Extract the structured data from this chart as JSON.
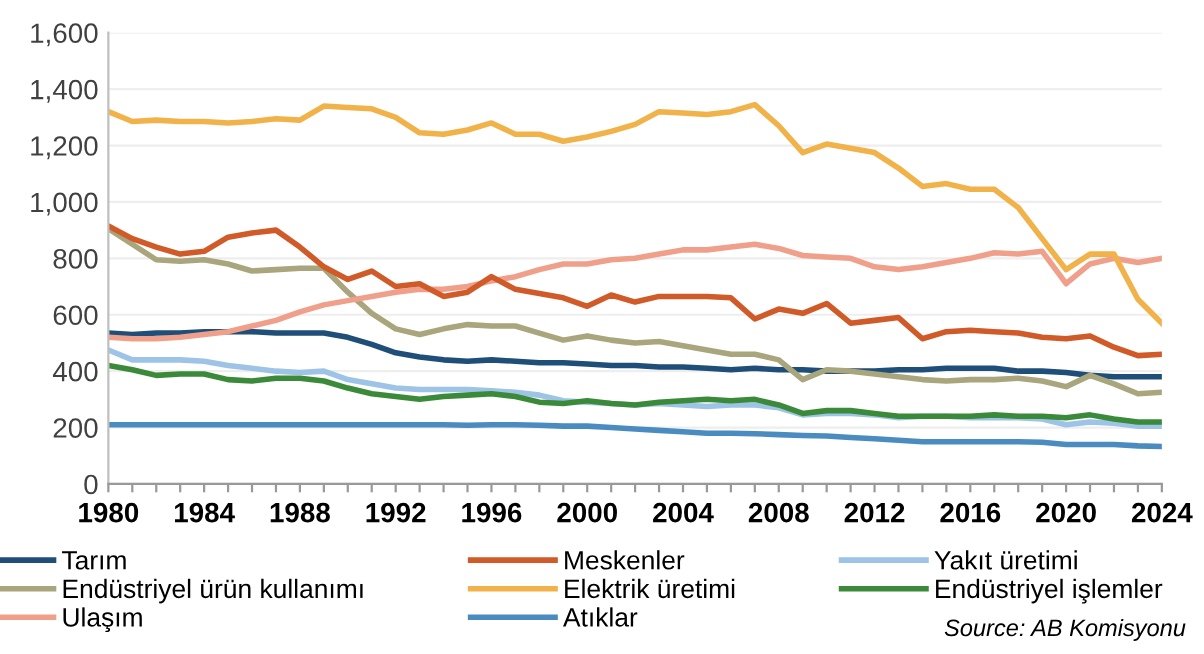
{
  "chart_data": {
    "type": "line",
    "x": [
      1980,
      1981,
      1982,
      1983,
      1984,
      1985,
      1986,
      1987,
      1988,
      1989,
      1990,
      1991,
      1992,
      1993,
      1994,
      1995,
      1996,
      1997,
      1998,
      1999,
      2000,
      2001,
      2002,
      2003,
      2004,
      2005,
      2006,
      2007,
      2008,
      2009,
      2010,
      2011,
      2012,
      2013,
      2014,
      2015,
      2016,
      2017,
      2018,
      2019,
      2020,
      2021,
      2022,
      2023,
      2024
    ],
    "series": [
      {
        "name": "Tarım",
        "color": "#1f4e79",
        "values": [
          535,
          530,
          535,
          535,
          540,
          540,
          540,
          535,
          535,
          535,
          520,
          495,
          465,
          450,
          440,
          435,
          440,
          435,
          430,
          430,
          425,
          420,
          420,
          415,
          415,
          410,
          405,
          410,
          405,
          405,
          400,
          400,
          400,
          405,
          405,
          410,
          410,
          410,
          400,
          400,
          395,
          385,
          380,
          380,
          380
        ]
      },
      {
        "name": "Endüstriyel ürün kullanımı",
        "color": "#a9a57c",
        "values": [
          905,
          850,
          795,
          790,
          795,
          780,
          755,
          760,
          765,
          765,
          680,
          605,
          550,
          530,
          550,
          565,
          560,
          560,
          535,
          510,
          525,
          510,
          500,
          505,
          490,
          475,
          460,
          460,
          440,
          370,
          405,
          400,
          390,
          380,
          370,
          365,
          370,
          370,
          375,
          365,
          345,
          385,
          355,
          320,
          325
        ]
      },
      {
        "name": "Ulaşım",
        "color": "#f0a08a",
        "values": [
          520,
          515,
          515,
          520,
          530,
          540,
          560,
          580,
          610,
          635,
          650,
          665,
          680,
          690,
          690,
          700,
          720,
          735,
          760,
          780,
          780,
          795,
          800,
          815,
          830,
          830,
          840,
          850,
          835,
          810,
          805,
          800,
          770,
          760,
          770,
          785,
          800,
          820,
          815,
          825,
          710,
          780,
          800,
          785,
          800
        ]
      },
      {
        "name": "Meskenler",
        "color": "#d05a28",
        "values": [
          915,
          870,
          840,
          815,
          825,
          875,
          890,
          900,
          840,
          770,
          725,
          755,
          700,
          710,
          665,
          680,
          735,
          690,
          675,
          660,
          630,
          670,
          645,
          665,
          665,
          665,
          660,
          585,
          620,
          605,
          640,
          570,
          580,
          590,
          515,
          540,
          545,
          540,
          535,
          520,
          515,
          525,
          485,
          455,
          460
        ]
      },
      {
        "name": "Elektrik üretimi",
        "color": "#f2b24a",
        "values": [
          1320,
          1285,
          1290,
          1285,
          1285,
          1280,
          1285,
          1295,
          1290,
          1340,
          1335,
          1330,
          1300,
          1245,
          1240,
          1255,
          1280,
          1240,
          1240,
          1215,
          1230,
          1250,
          1275,
          1320,
          1315,
          1310,
          1320,
          1345,
          1270,
          1175,
          1205,
          1190,
          1175,
          1120,
          1055,
          1065,
          1045,
          1045,
          980,
          870,
          760,
          815,
          815,
          655,
          570
        ]
      },
      {
        "name": "Atıklar",
        "color": "#4a8cc0",
        "values": [
          210,
          210,
          210,
          210,
          210,
          210,
          210,
          210,
          210,
          210,
          210,
          210,
          210,
          210,
          210,
          208,
          210,
          210,
          208,
          205,
          205,
          200,
          195,
          190,
          185,
          180,
          180,
          178,
          175,
          172,
          170,
          165,
          160,
          155,
          150,
          150,
          150,
          150,
          150,
          148,
          140,
          140,
          140,
          135,
          133
        ]
      },
      {
        "name": "Yakıt üretimi",
        "color": "#9dc3e6",
        "values": [
          475,
          440,
          440,
          440,
          435,
          420,
          410,
          400,
          395,
          400,
          370,
          355,
          340,
          335,
          335,
          335,
          330,
          325,
          315,
          295,
          290,
          285,
          280,
          285,
          280,
          275,
          280,
          280,
          270,
          245,
          250,
          250,
          245,
          235,
          240,
          240,
          235,
          235,
          235,
          230,
          210,
          220,
          215,
          205,
          205
        ]
      },
      {
        "name": "Endüstriyel işlemler",
        "color": "#3a8a3a",
        "values": [
          420,
          405,
          385,
          390,
          390,
          370,
          365,
          375,
          375,
          365,
          340,
          320,
          310,
          300,
          310,
          315,
          320,
          310,
          290,
          285,
          295,
          285,
          280,
          290,
          295,
          300,
          295,
          300,
          280,
          250,
          260,
          260,
          250,
          240,
          240,
          240,
          240,
          245,
          240,
          240,
          235,
          245,
          230,
          220,
          220
        ]
      }
    ],
    "xlim": [
      1980,
      2024
    ],
    "xticks": [
      1980,
      {
        "value": 1981,
        "label": null
      },
      {
        "value": 1982,
        "label": null
      },
      {
        "value": 1983,
        "label": null
      },
      1984,
      {
        "value": 1985,
        "label": null
      },
      {
        "value": 1986,
        "label": null
      },
      {
        "value": 1987,
        "label": null
      },
      1988,
      {
        "value": 1989,
        "label": null
      },
      {
        "value": 1990,
        "label": null
      },
      {
        "value": 1991,
        "label": null
      },
      1992,
      {
        "value": 1993,
        "label": null
      },
      {
        "value": 1994,
        "label": null
      },
      {
        "value": 1995,
        "label": null
      },
      1996,
      {
        "value": 1997,
        "label": null
      },
      {
        "value": 1998,
        "label": null
      },
      {
        "value": 1999,
        "label": null
      },
      2000,
      {
        "value": 2001,
        "label": null
      },
      {
        "value": 2002,
        "label": null
      },
      {
        "value": 2003,
        "label": null
      },
      2004,
      {
        "value": 2005,
        "label": null
      },
      {
        "value": 2006,
        "label": null
      },
      {
        "value": 2007,
        "label": null
      },
      2008,
      {
        "value": 2009,
        "label": null
      },
      {
        "value": 2010,
        "label": null
      },
      {
        "value": 2011,
        "label": null
      },
      2012,
      {
        "value": 2013,
        "label": null
      },
      {
        "value": 2014,
        "label": null
      },
      {
        "value": 2015,
        "label": null
      },
      2016,
      {
        "value": 2017,
        "label": null
      },
      {
        "value": 2018,
        "label": null
      },
      {
        "value": 2019,
        "label": null
      },
      2020,
      {
        "value": 2021,
        "label": null
      },
      {
        "value": 2022,
        "label": null
      },
      {
        "value": 2023,
        "label": null
      },
      2024
    ],
    "ylim": [
      0,
      1600
    ],
    "yticks": [
      {
        "value": 0,
        "label": "0"
      },
      {
        "value": 200,
        "label": "200"
      },
      {
        "value": 400,
        "label": "400"
      },
      {
        "value": 600,
        "label": "600"
      },
      {
        "value": 800,
        "label": "800"
      },
      {
        "value": 1000,
        "label": "1,000"
      },
      {
        "value": 1200,
        "label": "1,200"
      },
      {
        "value": 1400,
        "label": "1,400"
      },
      {
        "value": 1600,
        "label": "1,600"
      }
    ],
    "grid": "y",
    "legend": "bottom",
    "line_style": "solid",
    "annotations": [
      "Source: AB Komisyonu"
    ]
  }
}
